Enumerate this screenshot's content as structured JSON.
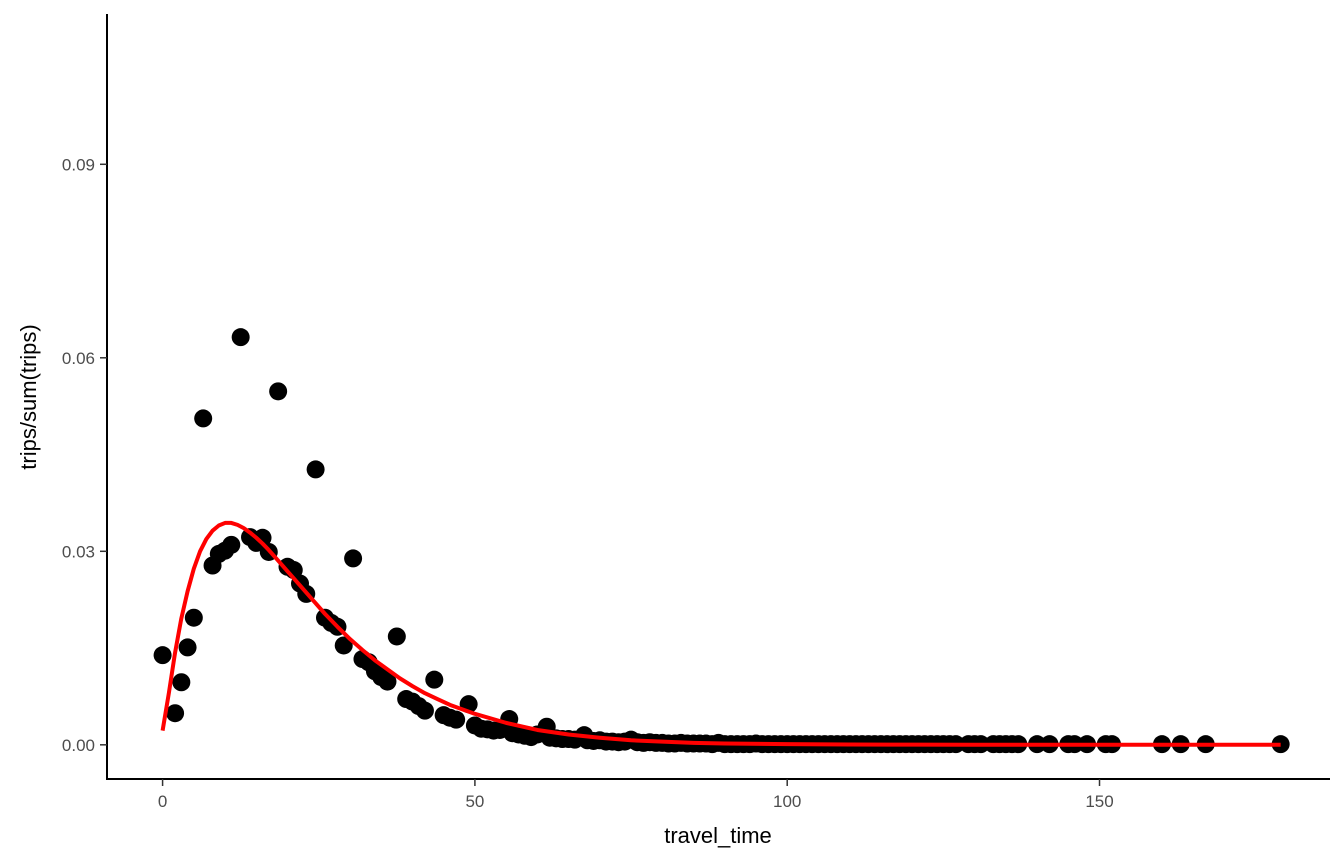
{
  "chart_data": {
    "type": "scatter",
    "title": "",
    "xlabel": "travel_time",
    "ylabel": "trips/sum(trips)",
    "xlim": [
      -8.9,
      186.9
    ],
    "ylim": [
      -0.0053,
      0.1133
    ],
    "x_ticks": [
      0,
      50,
      100,
      150
    ],
    "y_ticks": [
      0.0,
      0.03,
      0.06,
      0.09
    ],
    "y_tick_labels": [
      "0.00",
      "0.03",
      "0.06",
      "0.09"
    ],
    "grid": false,
    "legend": "none",
    "point_color": "#000000",
    "line_color": "#ff0000",
    "series": [
      {
        "kind": "points",
        "x": [
          0,
          2,
          3,
          4,
          5,
          6.5,
          8,
          9,
          10,
          11,
          12.5,
          14,
          15,
          16,
          17,
          18.5,
          20,
          21,
          22,
          23,
          24.5,
          26,
          27,
          28,
          29,
          30.5,
          32,
          33,
          34,
          35,
          36,
          37.5,
          39,
          40,
          41,
          42,
          43.5,
          45,
          46,
          47,
          49,
          50,
          51,
          52,
          53,
          54,
          55.5,
          56,
          57,
          58,
          59,
          60,
          61.5,
          62,
          63,
          64,
          65,
          66,
          67.5,
          68,
          69,
          70,
          71,
          72,
          73,
          74,
          75,
          76,
          77,
          78,
          79,
          80,
          81,
          82,
          83,
          84,
          85,
          86,
          87,
          88,
          89,
          90,
          91,
          92,
          93,
          94,
          95,
          96,
          97,
          98,
          99,
          100,
          101,
          102,
          103,
          104,
          105,
          106,
          107,
          108,
          109,
          110,
          111,
          112,
          113,
          114,
          115,
          116,
          117,
          118,
          119,
          120,
          121,
          122,
          123,
          124,
          125,
          126,
          127,
          129,
          130,
          131,
          133,
          134,
          135,
          136,
          137,
          140,
          142,
          145,
          146,
          148,
          151,
          152,
          160,
          163,
          167,
          179
        ],
        "y": [
          0.0139,
          0.0049,
          0.0097,
          0.0151,
          0.0197,
          0.0506,
          0.0278,
          0.0296,
          0.0301,
          0.031,
          0.0632,
          0.0322,
          0.0313,
          0.0321,
          0.0299,
          0.0548,
          0.0276,
          0.0271,
          0.025,
          0.0234,
          0.0427,
          0.0197,
          0.0189,
          0.0183,
          0.0154,
          0.0289,
          0.0133,
          0.0128,
          0.0114,
          0.0105,
          0.0098,
          0.0168,
          0.0071,
          0.0067,
          0.006,
          0.0053,
          0.0101,
          0.0046,
          0.0042,
          0.0039,
          0.0063,
          0.003,
          0.0025,
          0.0024,
          0.0022,
          0.0023,
          0.004,
          0.0018,
          0.0016,
          0.0014,
          0.0012,
          0.0016,
          0.0028,
          0.0011,
          0.001,
          0.0009,
          0.0009,
          0.0008,
          0.0015,
          0.0007,
          0.0006,
          0.0007,
          0.0005,
          0.0005,
          0.0004,
          0.0005,
          0.0008,
          0.0004,
          0.0003,
          0.0004,
          0.0003,
          0.0003,
          0.0002,
          0.0002,
          0.0003,
          0.0002,
          0.0002,
          0.0002,
          0.0002,
          0.0001,
          0.0003,
          0.0001,
          0.0001,
          0.0001,
          0.0001,
          0.0001,
          0.0002,
          0.0001,
          0.0001,
          0.0001,
          0.0001,
          0.0001,
          0.0001,
          0.0001,
          0.0001,
          0.0001,
          0.0001,
          0.0001,
          0.0001,
          0.0001,
          0.0001,
          0.0001,
          0.0001,
          0.0001,
          0.0001,
          0.0001,
          0.0001,
          0.0001,
          0.0001,
          0.0001,
          0.0001,
          0.0001,
          0.0001,
          0.0001,
          0.0001,
          0.0001,
          0.0001,
          0.0001,
          0.0001,
          0.0001,
          0.0001,
          0.0001,
          0.0001,
          0.0001,
          0.0001,
          0.0001,
          0.0001,
          0.0001,
          0.0001,
          0.0001,
          0.0001,
          0.0001,
          0.0001,
          0.0001,
          0.0001,
          0.0001,
          0.0001,
          0.0001
        ]
      },
      {
        "kind": "line",
        "x": [
          0,
          1,
          2,
          3,
          4,
          5,
          6,
          7,
          8,
          9,
          10,
          11,
          12,
          13,
          14,
          15,
          16,
          17,
          18,
          19,
          20,
          22,
          24,
          26,
          28,
          30,
          32,
          34,
          36,
          38,
          40,
          42,
          44,
          46,
          48,
          50,
          55,
          60,
          65,
          70,
          75,
          80,
          85,
          90,
          100,
          110,
          120,
          130,
          140,
          150,
          160,
          170,
          179
        ],
        "y": [
          0.0022,
          0.008,
          0.0143,
          0.0196,
          0.0238,
          0.0273,
          0.03,
          0.0319,
          0.0332,
          0.034,
          0.0344,
          0.0344,
          0.0341,
          0.0336,
          0.0329,
          0.0321,
          0.0312,
          0.0302,
          0.0291,
          0.028,
          0.0269,
          0.0247,
          0.0225,
          0.0203,
          0.0183,
          0.0164,
          0.0147,
          0.0131,
          0.0117,
          0.0103,
          0.0091,
          0.008,
          0.0071,
          0.0062,
          0.0055,
          0.0048,
          0.0034,
          0.0023,
          0.0016,
          0.0011,
          0.0007,
          0.0005,
          0.0003,
          0.0002,
          0.0001,
          4e-05,
          2e-05,
          1e-05,
          0.0,
          0.0,
          0.0,
          0.0,
          0.0
        ]
      }
    ]
  }
}
